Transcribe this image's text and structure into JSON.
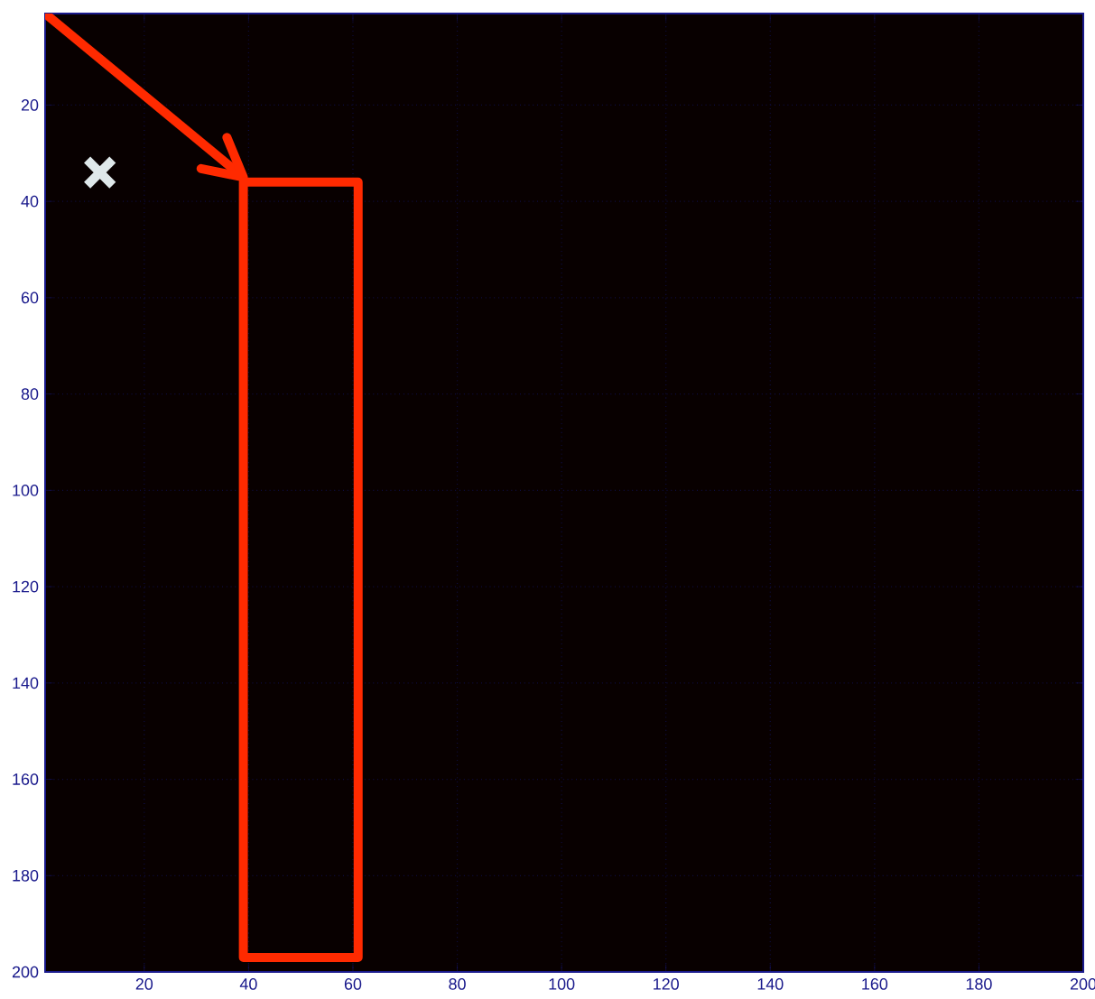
{
  "chart_data": {
    "type": "scatter",
    "xlim": [
      1,
      200
    ],
    "ylim": [
      200,
      1
    ],
    "xticks": [
      20,
      40,
      60,
      80,
      100,
      120,
      140,
      160,
      180,
      200
    ],
    "yticks": [
      20,
      40,
      60,
      80,
      100,
      120,
      140,
      160,
      180,
      200
    ],
    "grid": true,
    "series": [
      {
        "marker": "cross",
        "color": "#dfe8ea",
        "x": [
          11.5
        ],
        "values": [
          34
        ]
      },
      {
        "type": "line",
        "marker": "none",
        "color": "#ff2a00",
        "x": [
          1,
          39
        ],
        "values": [
          1,
          35
        ]
      }
    ]
  }
}
